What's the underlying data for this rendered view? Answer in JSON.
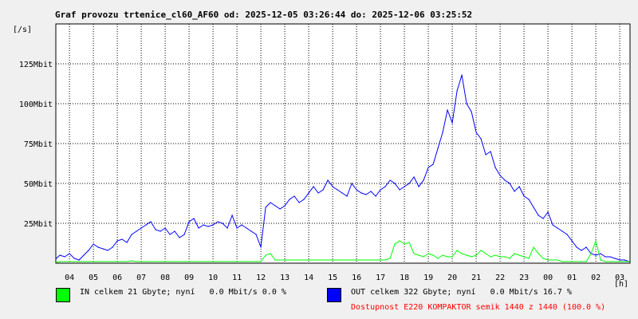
{
  "chart_data": {
    "type": "line",
    "title": "Graf provozu trtenice_cl60_AF60 od: 2025-12-05 03:26:44 do: 2025-12-06 03:25:52",
    "ylabel": "[/s]",
    "xlabel": "[h]",
    "ylim": [
      0,
      150
    ],
    "y_ticks": [
      {
        "value": 25,
        "label": "25Mbit"
      },
      {
        "value": 50,
        "label": "50Mbit"
      },
      {
        "value": 75,
        "label": "75Mbit"
      },
      {
        "value": 100,
        "label": "100Mbit"
      },
      {
        "value": 125,
        "label": "125Mbit"
      }
    ],
    "x_ticks": [
      "04",
      "05",
      "06",
      "07",
      "08",
      "09",
      "10",
      "11",
      "12",
      "13",
      "14",
      "15",
      "16",
      "17",
      "18",
      "19",
      "20",
      "21",
      "22",
      "23",
      "00",
      "01",
      "02",
      "03"
    ],
    "grid": true,
    "x": [
      3.45,
      3.6,
      3.8,
      4.0,
      4.2,
      4.4,
      4.6,
      4.8,
      5.0,
      5.2,
      5.4,
      5.6,
      5.8,
      6.0,
      6.2,
      6.4,
      6.6,
      6.8,
      7.0,
      7.2,
      7.4,
      7.6,
      7.8,
      8.0,
      8.2,
      8.4,
      8.6,
      8.8,
      9.0,
      9.2,
      9.4,
      9.6,
      9.8,
      10.0,
      10.2,
      10.4,
      10.6,
      10.8,
      11.0,
      11.2,
      11.4,
      11.6,
      11.8,
      12.0,
      12.2,
      12.4,
      12.6,
      12.8,
      13.0,
      13.2,
      13.4,
      13.6,
      13.8,
      14.0,
      14.2,
      14.4,
      14.6,
      14.8,
      15.0,
      15.2,
      15.4,
      15.6,
      15.8,
      16.0,
      16.2,
      16.4,
      16.6,
      16.8,
      17.0,
      17.2,
      17.4,
      17.6,
      17.8,
      18.0,
      18.2,
      18.4,
      18.6,
      18.8,
      19.0,
      19.2,
      19.4,
      19.6,
      19.8,
      20.0,
      20.2,
      20.4,
      20.6,
      20.8,
      21.0,
      21.2,
      21.4,
      21.6,
      21.8,
      22.0,
      22.2,
      22.4,
      22.6,
      22.8,
      23.0,
      23.2,
      23.4,
      23.6,
      23.8,
      24.0,
      24.2,
      24.4,
      24.6,
      24.8,
      25.0,
      25.2,
      25.4,
      25.6,
      25.8,
      26.0,
      26.2,
      26.4,
      26.6,
      26.8,
      27.0,
      27.2,
      27.4
    ],
    "series": [
      {
        "name": "OUT",
        "color": "#0000ff",
        "values": [
          3,
          5,
          4,
          6,
          3,
          2,
          5,
          8,
          12,
          10,
          9,
          8,
          10,
          14,
          15,
          13,
          18,
          20,
          22,
          24,
          26,
          21,
          20,
          22,
          18,
          20,
          16,
          18,
          26,
          28,
          22,
          24,
          23,
          24,
          26,
          25,
          22,
          30,
          22,
          24,
          22,
          20,
          18,
          10,
          35,
          38,
          36,
          34,
          36,
          40,
          42,
          38,
          40,
          44,
          48,
          44,
          46,
          52,
          48,
          46,
          44,
          42,
          50,
          46,
          44,
          43,
          45,
          42,
          46,
          48,
          52,
          50,
          46,
          48,
          50,
          54,
          48,
          52,
          60,
          62,
          72,
          82,
          96,
          88,
          108,
          118,
          100,
          95,
          82,
          78,
          68,
          70,
          60,
          55,
          52,
          50,
          45,
          48,
          42,
          40,
          35,
          30,
          28,
          32,
          24,
          22,
          20,
          18,
          14,
          10,
          8,
          10,
          6,
          5,
          6,
          4,
          4,
          3,
          2,
          2,
          1
        ]
      },
      {
        "name": "IN",
        "color": "#00ff00",
        "values": [
          0.5,
          1,
          1,
          1,
          1,
          1,
          1,
          1,
          1,
          1,
          1,
          1,
          1,
          1,
          1,
          1,
          1.5,
          1,
          1,
          1,
          1,
          1,
          1,
          1,
          1,
          1,
          1,
          1,
          1,
          1,
          1,
          1,
          1,
          1,
          1,
          1,
          1,
          1,
          1,
          1,
          1,
          1,
          1,
          1,
          5,
          6,
          2,
          2,
          2,
          2,
          2,
          2,
          2,
          2,
          2,
          2,
          2,
          2,
          2,
          2,
          2,
          2,
          2,
          2,
          2,
          2,
          2,
          2,
          2,
          2,
          3,
          12,
          14,
          12,
          13,
          6,
          5,
          4,
          6,
          5,
          3,
          5,
          4,
          4,
          8,
          6,
          5,
          4,
          5,
          8,
          6,
          4,
          5,
          4,
          4,
          3,
          6,
          5,
          4,
          3,
          10,
          6,
          3,
          2,
          2,
          2,
          1,
          1,
          1,
          1,
          1,
          1,
          6,
          14,
          2,
          1,
          1,
          1,
          1,
          1,
          1
        ]
      }
    ]
  },
  "legend": {
    "in_color": "#00ff00",
    "out_color": "#0000ff",
    "in_text": "IN celkem 21 Gbyte; nyní   0.0 Mbit/s 0.0 %",
    "out_text": "OUT celkem 322 Gbyte; nyní   0.0 Mbit/s 16.7 %",
    "availability_text": "Dostupnost E220 KOMPAKTOR semik 1440 z 1440 (100.0 %)"
  }
}
